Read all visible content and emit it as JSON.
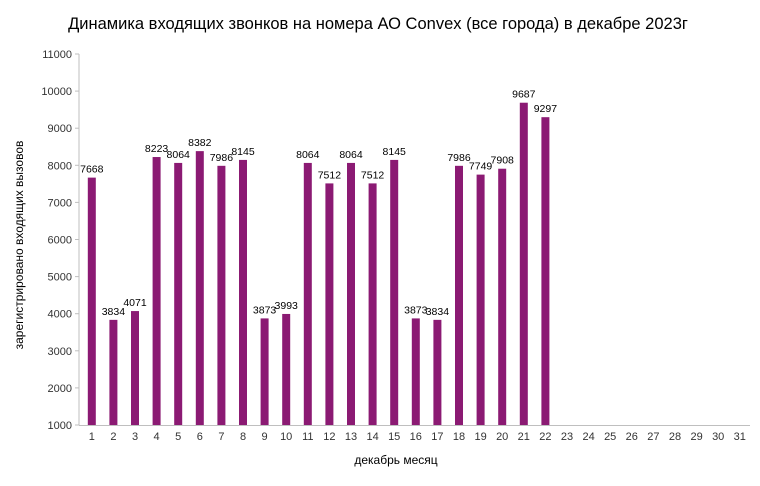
{
  "chart_data": {
    "type": "bar",
    "title": "Динамика входящих звонков на номера АО Convex (все города) в декабре 2023г",
    "xlabel": "декабрь месяц",
    "ylabel": "зарегистрировано входящих вызовов",
    "ylim": [
      1000,
      11000
    ],
    "yticks": [
      "1000",
      "2000",
      "3000",
      "4000",
      "5000",
      "6000",
      "7000",
      "8000",
      "9000",
      "10000",
      "11000"
    ],
    "grid": false,
    "legend": "none",
    "bar_color": "#8B1A73",
    "categories": [
      "1",
      "2",
      "3",
      "4",
      "5",
      "6",
      "7",
      "8",
      "9",
      "10",
      "11",
      "12",
      "13",
      "14",
      "15",
      "16",
      "17",
      "18",
      "19",
      "20",
      "21",
      "22",
      "23",
      "24",
      "25",
      "26",
      "27",
      "28",
      "29",
      "30",
      "31"
    ],
    "values": [
      7668,
      3834,
      4071,
      8223,
      8064,
      8382,
      7986,
      8145,
      3873,
      3993,
      8064,
      7512,
      8064,
      7512,
      8145,
      3873,
      3834,
      7986,
      7749,
      7908,
      9687,
      9297,
      null,
      null,
      null,
      null,
      null,
      null,
      null,
      null,
      null
    ]
  }
}
